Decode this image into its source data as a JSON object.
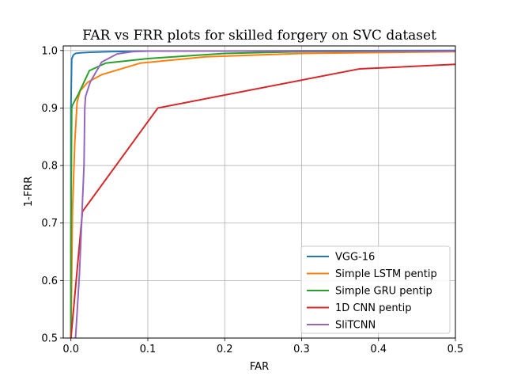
{
  "chart_data": {
    "type": "line",
    "title": "FAR vs FRR plots for skilled forgery on SVC dataset",
    "xlabel": "FAR",
    "ylabel": "1-FRR",
    "xlim": [
      -0.01,
      0.5
    ],
    "ylim": [
      0.5,
      1.008
    ],
    "xticks": [
      0.0,
      0.1,
      0.2,
      0.3,
      0.4,
      0.5
    ],
    "xtick_labels": [
      "0.0",
      "0.1",
      "0.2",
      "0.3",
      "0.4",
      "0.5"
    ],
    "yticks": [
      0.5,
      0.6,
      0.7,
      0.8,
      0.9,
      1.0
    ],
    "ytick_labels": [
      "0.5",
      "0.6",
      "0.7",
      "0.8",
      "0.9",
      "1.0"
    ],
    "grid": true,
    "legend_position": "lower-right",
    "series": [
      {
        "name": "VGG-16",
        "color": "#1f77b4",
        "x": [
          0.0,
          0.0,
          0.001,
          0.003,
          0.006,
          0.012,
          0.025,
          0.05,
          0.1,
          0.2,
          0.3,
          0.5
        ],
        "y": [
          0.5,
          0.9,
          0.985,
          0.992,
          0.995,
          0.996,
          0.997,
          0.998,
          0.999,
          0.999,
          0.9995,
          1.0
        ]
      },
      {
        "name": "Simple LSTM pentip",
        "color": "#ff7f0e",
        "x": [
          0.0,
          0.002,
          0.005,
          0.008,
          0.012,
          0.022,
          0.04,
          0.09,
          0.175,
          0.3,
          0.5
        ],
        "y": [
          0.5,
          0.72,
          0.84,
          0.91,
          0.93,
          0.945,
          0.958,
          0.978,
          0.989,
          0.995,
          0.998
        ]
      },
      {
        "name": "Simple GRU pentip",
        "color": "#2ca02c",
        "x": [
          0.0,
          0.0,
          0.001,
          0.002,
          0.01,
          0.024,
          0.045,
          0.1,
          0.2,
          0.3,
          0.5
        ],
        "y": [
          0.5,
          0.66,
          0.9,
          0.905,
          0.925,
          0.965,
          0.978,
          0.986,
          0.995,
          0.998,
          0.999
        ]
      },
      {
        "name": "1D CNN pentip",
        "color": "#d62728",
        "x": [
          0.0,
          0.015,
          0.113,
          0.375,
          0.5
        ],
        "y": [
          0.5,
          0.72,
          0.9,
          0.968,
          0.976
        ]
      },
      {
        "name": "SliTCNN",
        "color": "#9467bd",
        "x": [
          0.006,
          0.011,
          0.017,
          0.018,
          0.019,
          0.025,
          0.04,
          0.06,
          0.08,
          0.1,
          0.2,
          0.5
        ],
        "y": [
          0.5,
          0.61,
          0.8,
          0.9,
          0.92,
          0.945,
          0.98,
          0.994,
          0.998,
          0.999,
          0.999,
          0.999
        ]
      }
    ]
  }
}
